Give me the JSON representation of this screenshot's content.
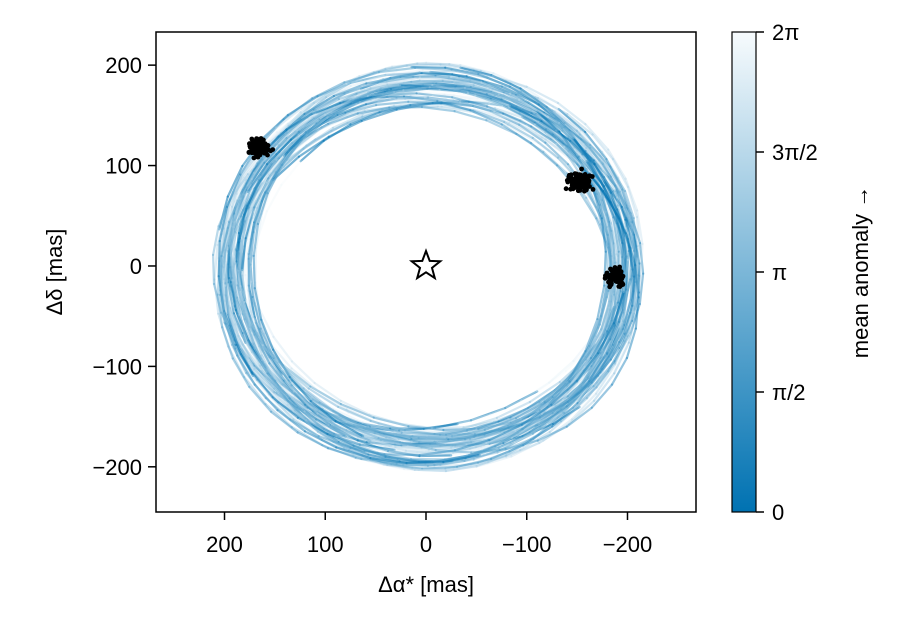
{
  "chart_data": {
    "type": "scatter",
    "title": "",
    "xlabel": "Δα* [mas]",
    "ylabel": "Δδ [mas]",
    "x_reversed": true,
    "xlim": [
      -268,
      268
    ],
    "ylim": [
      -245,
      233
    ],
    "xticks": [
      200,
      100,
      0,
      -100,
      -200
    ],
    "xtick_labels": [
      "200",
      "100",
      "0",
      "−100",
      "−200"
    ],
    "yticks": [
      200,
      100,
      0,
      -100,
      -200
    ],
    "ytick_labels": [
      "200",
      "100",
      "0",
      "−100",
      "−200"
    ],
    "grid": false,
    "star": {
      "x": 0,
      "y": 0,
      "marker": "star"
    },
    "orbit_colormap": {
      "label": "mean anomaly →",
      "min": 0,
      "max": 6.283185,
      "low_color": "#0072b2",
      "high_color": "#f7fbfd",
      "ticks": [
        0,
        1.570796,
        3.141593,
        4.712389,
        6.283185
      ],
      "tick_labels": [
        "0",
        "π/2",
        "π",
        "3π/2",
        "2π"
      ]
    },
    "orbit_ensemble": {
      "count": 60,
      "center_x": [
        -8,
        2
      ],
      "center_y": [
        -8,
        4
      ],
      "semi_axis_a": [
        175,
        212
      ],
      "semi_axis_b": [
        160,
        200
      ],
      "tilt_deg": [
        -25,
        30
      ]
    },
    "series": [
      {
        "name": "",
        "color": "#000000",
        "center": [
          166,
          117
        ],
        "spread": [
          12,
          11
        ],
        "n": 130
      },
      {
        "name": "",
        "color": "#000000",
        "center": [
          -152,
          84
        ],
        "spread": [
          12,
          10
        ],
        "n": 130
      },
      {
        "name": "",
        "color": "#000000",
        "center": [
          -188,
          -10
        ],
        "spread": [
          9,
          10
        ],
        "n": 100
      }
    ]
  }
}
